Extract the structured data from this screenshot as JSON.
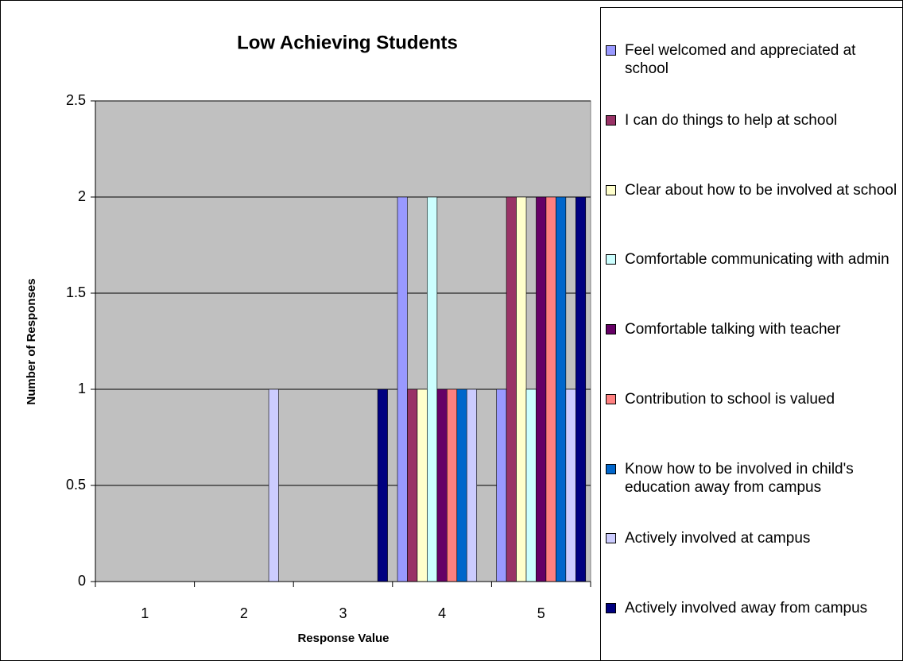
{
  "chart_data": {
    "type": "bar",
    "title": "Low Achieving Students",
    "x_label": "Response Value",
    "y_label": "Number of Responses",
    "categories": [
      "1",
      "2",
      "3",
      "4",
      "5"
    ],
    "series": [
      {
        "name": "Feel welcomed and appreciated at school",
        "color": "#9999ff",
        "values": [
          0,
          0,
          0,
          2,
          1
        ]
      },
      {
        "name": "I can do things to help at school",
        "color": "#993366",
        "values": [
          0,
          0,
          0,
          1,
          2
        ]
      },
      {
        "name": "Clear about how to be involved at school",
        "color": "#ffffcc",
        "values": [
          0,
          0,
          0,
          1,
          2
        ]
      },
      {
        "name": "Comfortable communicating with admin",
        "color": "#ccffff",
        "values": [
          0,
          0,
          0,
          2,
          1
        ]
      },
      {
        "name": "Comfortable talking with teacher",
        "color": "#660066",
        "values": [
          0,
          0,
          0,
          1,
          2
        ]
      },
      {
        "name": "Contribution to school is valued",
        "color": "#ff8080",
        "values": [
          0,
          0,
          0,
          1,
          2
        ]
      },
      {
        "name": "Know how to be involved in child's education away from campus",
        "color": "#0066cc",
        "values": [
          0,
          0,
          0,
          1,
          2
        ]
      },
      {
        "name": "Actively involved at campus",
        "color": "#ccccff",
        "values": [
          0,
          1,
          0,
          1,
          1
        ]
      },
      {
        "name": "Actively involved away from campus",
        "color": "#000080",
        "values": [
          0,
          0,
          1,
          0,
          2
        ]
      }
    ],
    "ylim": [
      0,
      2.5
    ],
    "yticks": [
      0,
      0.5,
      1,
      1.5,
      2,
      2.5
    ],
    "grid": true,
    "legend": "right",
    "plot_background": "#c0c0c0"
  }
}
